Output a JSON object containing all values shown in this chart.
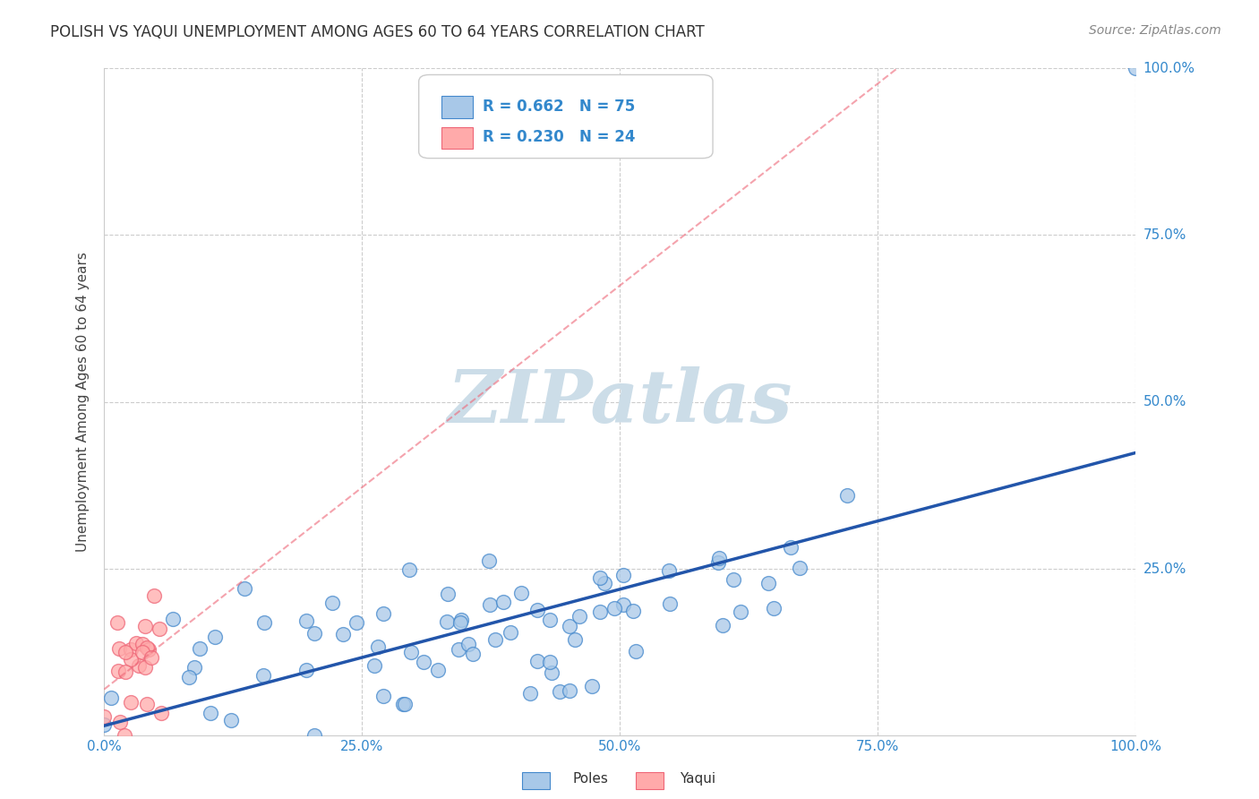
{
  "title": "POLISH VS YAQUI UNEMPLOYMENT AMONG AGES 60 TO 64 YEARS CORRELATION CHART",
  "source": "Source: ZipAtlas.com",
  "ylabel": "Unemployment Among Ages 60 to 64 years",
  "xlim": [
    0,
    1.0
  ],
  "ylim": [
    0,
    1.0
  ],
  "poles_color": "#a8c8e8",
  "poles_edge_color": "#4488cc",
  "yaqui_color": "#ffaaaa",
  "yaqui_edge_color": "#ee6677",
  "poles_R": 0.662,
  "poles_N": 75,
  "yaqui_R": 0.23,
  "yaqui_N": 24,
  "poles_line_color": "#2255aa",
  "yaqui_line_color": "#dd5566",
  "label_color": "#3388cc",
  "watermark_color": "#ccdde8",
  "background_color": "#ffffff",
  "grid_color": "#cccccc"
}
